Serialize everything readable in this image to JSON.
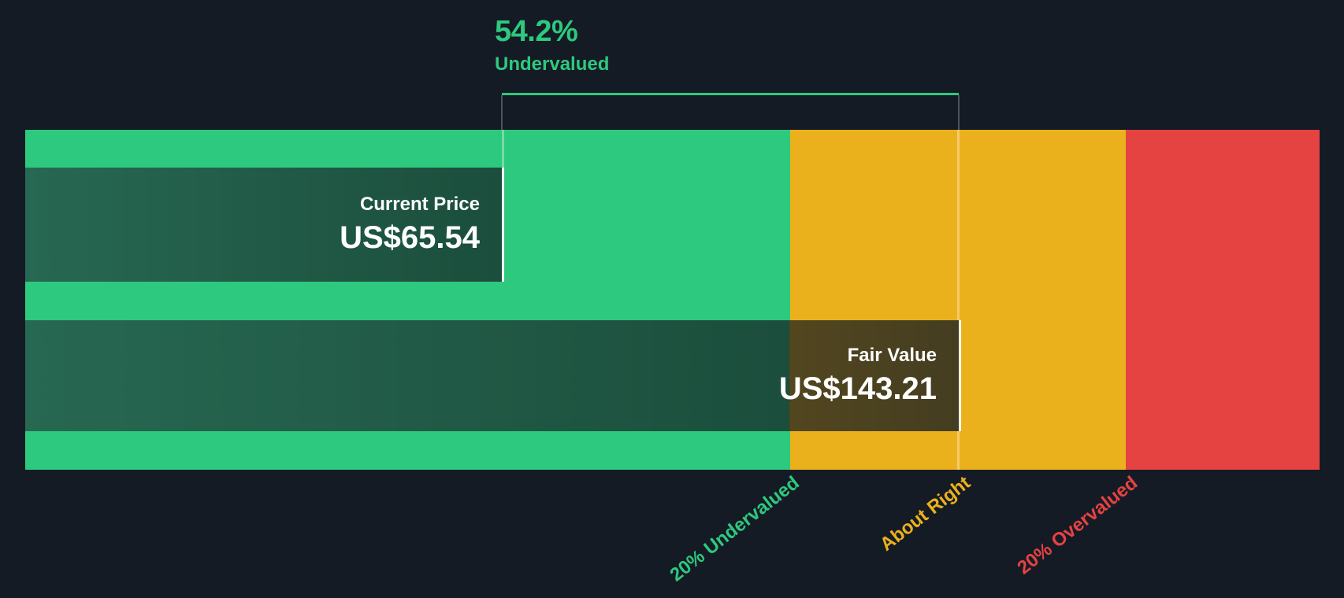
{
  "colors": {
    "background": "#151b25",
    "green": "#2dc97e",
    "yellow": "#ebb11d",
    "red": "#e54242",
    "bar-dark-green": "#1b4e3c",
    "bar-dark-olive": "#4a4021",
    "connector-gray": "#4e545c",
    "marker-white": "#ffffff"
  },
  "callout": {
    "percent": "54.2%",
    "label": "Undervalued"
  },
  "bars": {
    "current_price": {
      "label": "Current Price",
      "value": "US$65.54"
    },
    "fair_value": {
      "label": "Fair Value",
      "value": "US$143.21"
    }
  },
  "axis": {
    "zones": [
      {
        "label": "20% Undervalued",
        "color": "#2dc97e"
      },
      {
        "label": "About Right",
        "color": "#ebb11d"
      },
      {
        "label": "20% Overvalued",
        "color": "#e54242"
      }
    ]
  },
  "chart_data": {
    "type": "bar",
    "title": "54.2% Undervalued",
    "currency": "US$",
    "series": [
      {
        "name": "Current Price",
        "value": 65.54
      },
      {
        "name": "Fair Value",
        "value": 143.21
      }
    ],
    "undervalued_percent": 54.2,
    "zones": [
      {
        "label": "20% Undervalued",
        "color": "#2dc97e",
        "ends_at_ratio_of_fair_value": 0.8
      },
      {
        "label": "About Right",
        "color": "#ebb11d",
        "ends_at_ratio_of_fair_value": 1.2
      },
      {
        "label": "20% Overvalued",
        "color": "#e54242",
        "ends_at_ratio_of_fair_value": null
      }
    ],
    "legend": "none",
    "grid": false
  }
}
